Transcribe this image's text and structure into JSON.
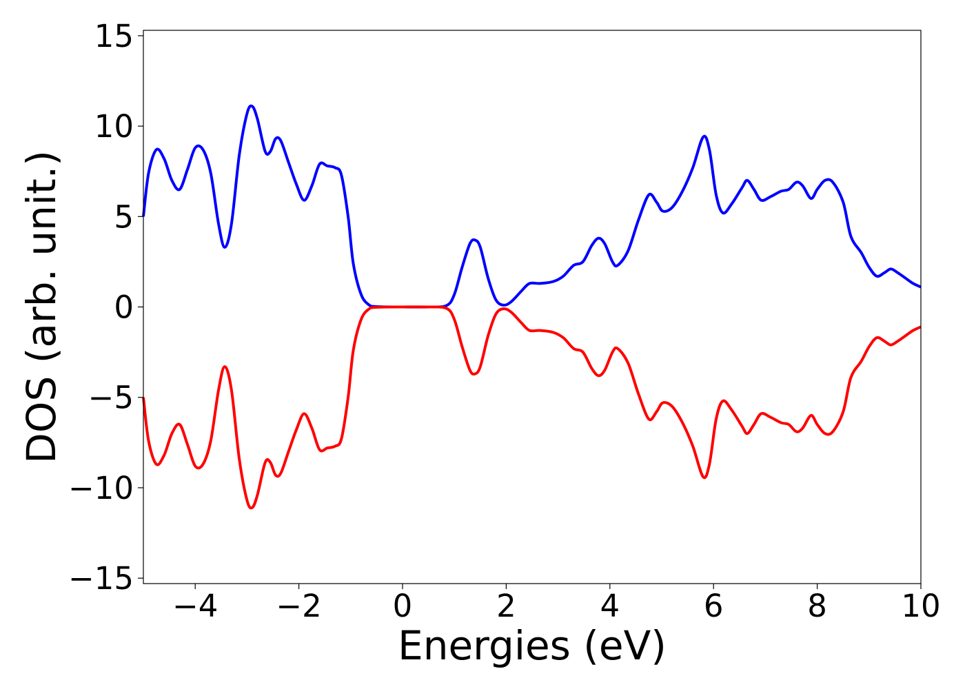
{
  "chart_data": {
    "type": "line",
    "title": "",
    "xlabel": "Energies (eV)",
    "ylabel": "DOS (arb. unit.)",
    "xlim": [
      -5,
      10
    ],
    "ylim": [
      -15.3,
      15.3
    ],
    "xticks": [
      -4,
      -2,
      0,
      2,
      4,
      6,
      8,
      10
    ],
    "xtick_labels": [
      "−4",
      "−2",
      "0",
      "2",
      "4",
      "6",
      "8",
      "10"
    ],
    "yticks": [
      -15,
      -10,
      -5,
      0,
      5,
      10,
      15
    ],
    "ytick_labels": [
      "−15",
      "−10",
      "−5",
      "0",
      "5",
      "10",
      "15"
    ],
    "grid": false,
    "legend": "none",
    "series": [
      {
        "color": "#0000ff",
        "points": [
          [
            -5.0,
            5.0
          ],
          [
            -4.9,
            7.4
          ],
          [
            -4.75,
            8.7
          ],
          [
            -4.6,
            8.2
          ],
          [
            -4.45,
            7.0
          ],
          [
            -4.3,
            6.5
          ],
          [
            -4.15,
            7.6
          ],
          [
            -4.0,
            8.8
          ],
          [
            -3.85,
            8.7
          ],
          [
            -3.7,
            7.4
          ],
          [
            -3.55,
            4.6
          ],
          [
            -3.43,
            3.3
          ],
          [
            -3.3,
            4.6
          ],
          [
            -3.15,
            8.4
          ],
          [
            -3.0,
            10.7
          ],
          [
            -2.9,
            11.1
          ],
          [
            -2.8,
            10.4
          ],
          [
            -2.65,
            8.6
          ],
          [
            -2.55,
            8.6
          ],
          [
            -2.45,
            9.3
          ],
          [
            -2.35,
            9.2
          ],
          [
            -2.2,
            8.0
          ],
          [
            -2.05,
            6.8
          ],
          [
            -1.9,
            5.9
          ],
          [
            -1.75,
            6.7
          ],
          [
            -1.6,
            7.9
          ],
          [
            -1.45,
            7.8
          ],
          [
            -1.3,
            7.7
          ],
          [
            -1.18,
            7.3
          ],
          [
            -1.05,
            5.0
          ],
          [
            -0.95,
            2.4
          ],
          [
            -0.8,
            0.7
          ],
          [
            -0.65,
            0.12
          ],
          [
            -0.5,
            0.02
          ],
          [
            0.0,
            0.0
          ],
          [
            0.5,
            0.0
          ],
          [
            0.85,
            0.08
          ],
          [
            1.0,
            0.7
          ],
          [
            1.15,
            2.2
          ],
          [
            1.3,
            3.5
          ],
          [
            1.4,
            3.7
          ],
          [
            1.5,
            3.3
          ],
          [
            1.65,
            1.6
          ],
          [
            1.8,
            0.4
          ],
          [
            1.95,
            0.1
          ],
          [
            2.1,
            0.3
          ],
          [
            2.3,
            0.9
          ],
          [
            2.45,
            1.3
          ],
          [
            2.65,
            1.3
          ],
          [
            2.9,
            1.4
          ],
          [
            3.1,
            1.7
          ],
          [
            3.3,
            2.3
          ],
          [
            3.48,
            2.5
          ],
          [
            3.65,
            3.4
          ],
          [
            3.78,
            3.8
          ],
          [
            3.9,
            3.5
          ],
          [
            4.05,
            2.5
          ],
          [
            4.15,
            2.3
          ],
          [
            4.35,
            3.1
          ],
          [
            4.55,
            4.8
          ],
          [
            4.75,
            6.2
          ],
          [
            4.9,
            5.8
          ],
          [
            5.02,
            5.3
          ],
          [
            5.2,
            5.5
          ],
          [
            5.4,
            6.4
          ],
          [
            5.6,
            7.7
          ],
          [
            5.8,
            9.4
          ],
          [
            5.92,
            8.7
          ],
          [
            6.05,
            6.2
          ],
          [
            6.18,
            5.2
          ],
          [
            6.35,
            5.7
          ],
          [
            6.55,
            6.6
          ],
          [
            6.65,
            7.0
          ],
          [
            6.78,
            6.5
          ],
          [
            6.92,
            5.9
          ],
          [
            7.1,
            6.1
          ],
          [
            7.3,
            6.4
          ],
          [
            7.45,
            6.5
          ],
          [
            7.6,
            6.9
          ],
          [
            7.72,
            6.7
          ],
          [
            7.88,
            6.0
          ],
          [
            8.0,
            6.5
          ],
          [
            8.15,
            7.0
          ],
          [
            8.3,
            6.9
          ],
          [
            8.5,
            5.8
          ],
          [
            8.65,
            3.9
          ],
          [
            8.85,
            3.0
          ],
          [
            9.0,
            2.2
          ],
          [
            9.15,
            1.7
          ],
          [
            9.3,
            1.9
          ],
          [
            9.42,
            2.1
          ],
          [
            9.55,
            1.9
          ],
          [
            9.7,
            1.6
          ],
          [
            9.85,
            1.3
          ],
          [
            10.0,
            1.1
          ]
        ]
      },
      {
        "color": "#ff0000",
        "mirror_of": 0
      }
    ]
  }
}
